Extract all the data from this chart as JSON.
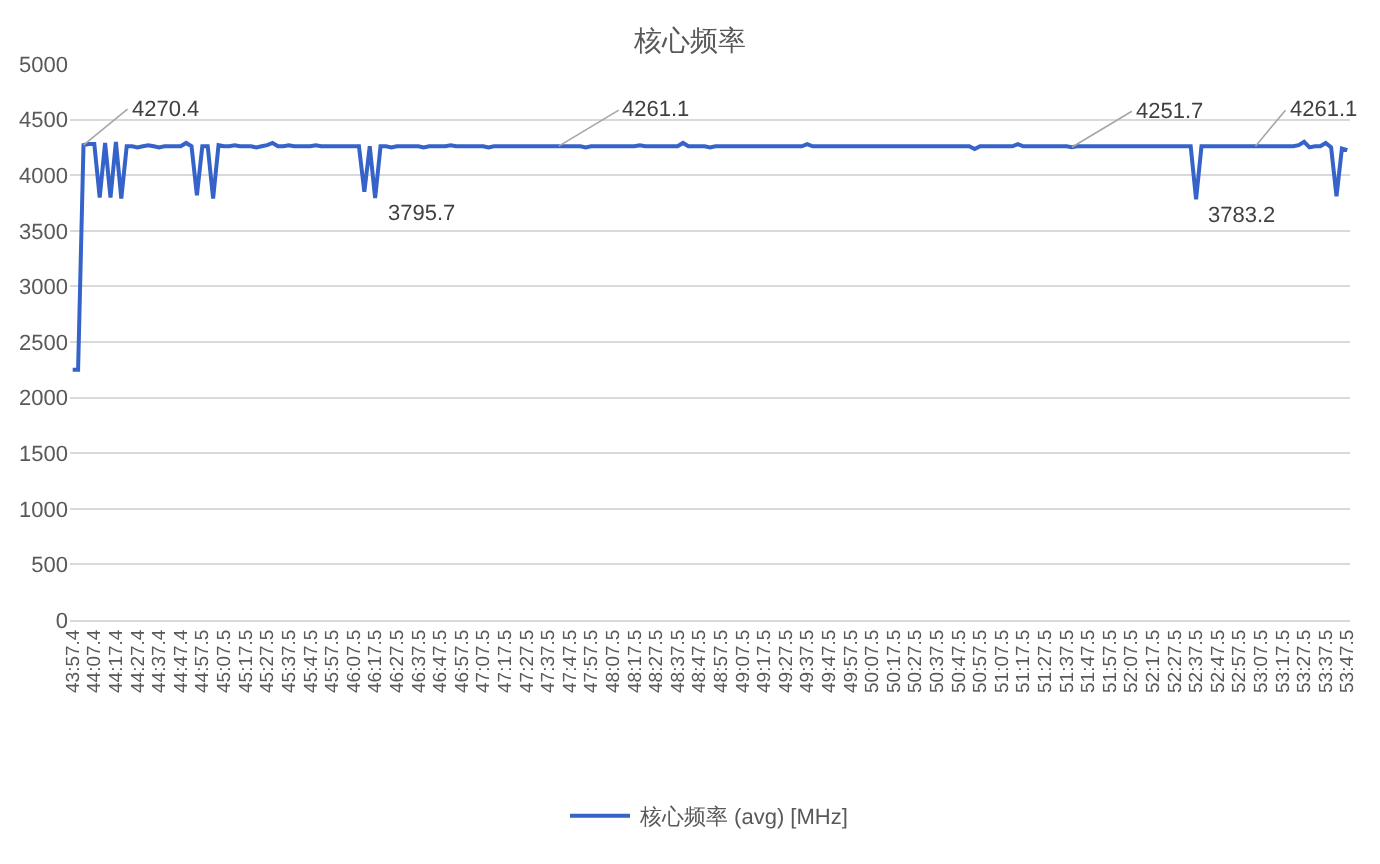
{
  "chart_data": {
    "type": "line",
    "title": "核心频率",
    "legend": "bottom",
    "grid": "y",
    "marker": "none",
    "line_style": "solid",
    "categories": [
      "43:57.4",
      null,
      null,
      null,
      "44:07.4",
      null,
      null,
      null,
      "44:17.4",
      null,
      null,
      null,
      "44:27.4",
      null,
      null,
      null,
      "44:37.4",
      null,
      null,
      null,
      "44:47.4",
      null,
      null,
      null,
      "44:57.5",
      null,
      null,
      null,
      "45:07.5",
      null,
      null,
      null,
      "45:17.5",
      null,
      null,
      null,
      "45:27.5",
      null,
      null,
      null,
      "45:37.5",
      null,
      null,
      null,
      "45:47.5",
      null,
      null,
      null,
      "45:57.5",
      null,
      null,
      null,
      "46:07.5",
      null,
      null,
      null,
      "46:17.5",
      null,
      null,
      null,
      "46:27.5",
      null,
      null,
      null,
      "46:37.5",
      null,
      null,
      null,
      "46:47.5",
      null,
      null,
      null,
      "46:57.5",
      null,
      null,
      null,
      "47:07.5",
      null,
      null,
      null,
      "47:17.5",
      null,
      null,
      null,
      "47:27.5",
      null,
      null,
      null,
      "47:37.5",
      null,
      null,
      null,
      "47:47.5",
      null,
      null,
      null,
      "47:57.5",
      null,
      null,
      null,
      "48:07.5",
      null,
      null,
      null,
      "48:17.5",
      null,
      null,
      null,
      "48:27.5",
      null,
      null,
      null,
      "48:37.5",
      null,
      null,
      null,
      "48:47.5",
      null,
      null,
      null,
      "48:57.5",
      null,
      null,
      null,
      "49:07.5",
      null,
      null,
      null,
      "49:17.5",
      null,
      null,
      null,
      "49:27.5",
      null,
      null,
      null,
      "49:37.5",
      null,
      null,
      null,
      "49:47.5",
      null,
      null,
      null,
      "49:57.5",
      null,
      null,
      null,
      "50:07.5",
      null,
      null,
      null,
      "50:17.5",
      null,
      null,
      null,
      "50:27.5",
      null,
      null,
      null,
      "50:37.5",
      null,
      null,
      null,
      "50:47.5",
      null,
      null,
      null,
      "50:57.5",
      null,
      null,
      null,
      "51:07.5",
      null,
      null,
      null,
      "51:17.5",
      null,
      null,
      null,
      "51:27.5",
      null,
      null,
      null,
      "51:37.5",
      null,
      null,
      null,
      "51:47.5",
      null,
      null,
      null,
      "51:57.5",
      null,
      null,
      null,
      "52:07.5",
      null,
      null,
      null,
      "52:17.5",
      null,
      null,
      null,
      "52:27.5",
      null,
      null,
      null,
      "52:37.5",
      null,
      null,
      null,
      "52:47.5",
      null,
      null,
      null,
      "52:57.5",
      null,
      null,
      null,
      "53:07.5",
      null,
      null,
      null,
      "53:17.5",
      null,
      null,
      null,
      "53:27.5",
      null,
      null,
      null,
      "53:37.5",
      null,
      null,
      null,
      "53:47.5"
    ],
    "series": [
      {
        "name": "核心频率 (avg) [MHz]",
        "color": "#3563c9",
        "values": [
          2250,
          2250,
          4270.4,
          4280,
          4280,
          3800,
          4290,
          3800,
          4300,
          3790,
          4260,
          4260,
          4250,
          4260,
          4270,
          4260,
          4250,
          4260,
          4260,
          4260,
          4260,
          4290,
          4260,
          3820,
          4260,
          4260,
          3790,
          4270,
          4260,
          4260,
          4270,
          4260,
          4260,
          4260,
          4250,
          4260,
          4270,
          4290,
          4260,
          4260,
          4270,
          4260,
          4260,
          4260,
          4260,
          4270,
          4260,
          4260,
          4260,
          4260,
          4260,
          4260,
          4260,
          4260,
          3850,
          4260,
          3795.7,
          4260,
          4260,
          4250,
          4260,
          4260,
          4260,
          4260,
          4260,
          4250,
          4260,
          4260,
          4260,
          4260,
          4270,
          4260,
          4260,
          4260,
          4260,
          4260,
          4260,
          4250,
          4260,
          4260,
          4260,
          4260,
          4260,
          4260,
          4260,
          4260,
          4260,
          4260,
          4260,
          4260,
          4261.1,
          4260,
          4260,
          4260,
          4260,
          4250,
          4260,
          4260,
          4260,
          4260,
          4260,
          4260,
          4260,
          4260,
          4260,
          4270,
          4260,
          4260,
          4260,
          4260,
          4260,
          4260,
          4260,
          4290,
          4260,
          4260,
          4260,
          4260,
          4250,
          4260,
          4260,
          4260,
          4260,
          4260,
          4260,
          4260,
          4260,
          4260,
          4260,
          4260,
          4260,
          4260,
          4260,
          4260,
          4260,
          4260,
          4280,
          4260,
          4260,
          4260,
          4260,
          4260,
          4260,
          4260,
          4260,
          4260,
          4260,
          4260,
          4260,
          4260,
          4260,
          4260,
          4260,
          4260,
          4260,
          4260,
          4260,
          4260,
          4260,
          4260,
          4260,
          4260,
          4260,
          4260,
          4260,
          4260,
          4260,
          4235,
          4260,
          4260,
          4260,
          4260,
          4260,
          4260,
          4260,
          4280,
          4260,
          4260,
          4260,
          4260,
          4260,
          4260,
          4260,
          4260,
          4260,
          4251.7,
          4260,
          4260,
          4260,
          4260,
          4260,
          4260,
          4260,
          4260,
          4260,
          4260,
          4260,
          4260,
          4260,
          4260,
          4260,
          4260,
          4260,
          4260,
          4260,
          4260,
          4260,
          4260,
          3783.2,
          4260,
          4260,
          4260,
          4260,
          4260,
          4260,
          4260,
          4260,
          4260,
          4260,
          4261.1,
          4260,
          4260,
          4260,
          4260,
          4260,
          4260,
          4260,
          4270,
          4300,
          4250,
          4260,
          4260,
          4290,
          4250,
          3810,
          4240,
          4225
        ]
      }
    ],
    "ylim": [
      0,
      5000
    ],
    "yticks": [
      0,
      500,
      1000,
      1500,
      2000,
      2500,
      3000,
      3500,
      4000,
      4500,
      5000
    ],
    "annotations": [
      {
        "text": "4270.4",
        "y": 4270.4
      },
      {
        "text": "3795.7",
        "x": "46:17.5",
        "y": 3795.7
      },
      {
        "text": "4261.1",
        "y": 4261.1
      },
      {
        "text": "4251.7",
        "y": 4251.7
      },
      {
        "text": "3783.2",
        "x": "52:37.5",
        "y": 3783.2
      },
      {
        "text": "4261.1",
        "y": 4261.1
      }
    ]
  }
}
